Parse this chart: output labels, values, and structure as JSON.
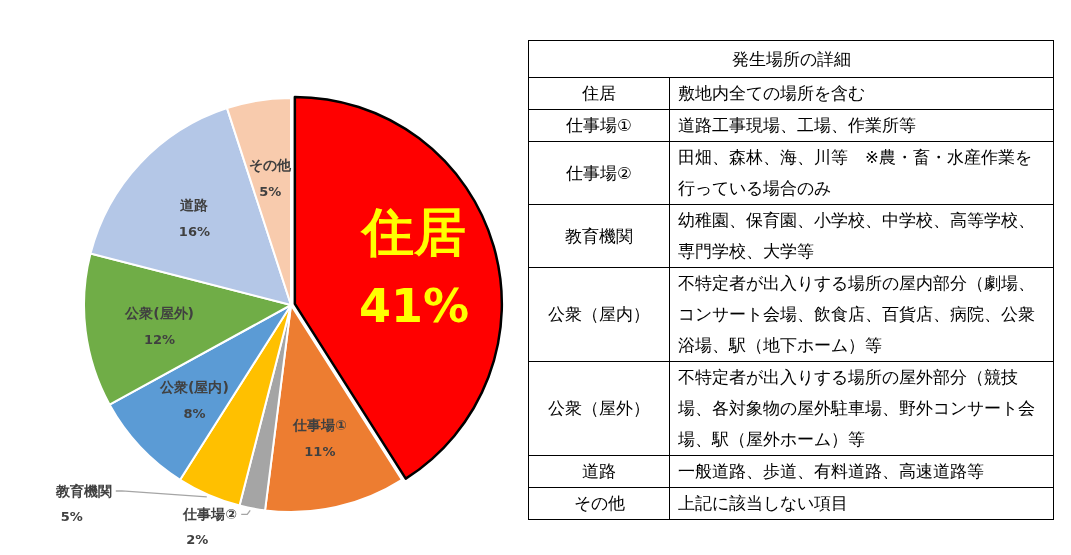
{
  "chart_data": [
    {
      "type": "pie",
      "categories": [
        "住居",
        "仕事場①",
        "仕事場②",
        "教育機関",
        "公衆(屋内)",
        "公衆(屋外)",
        "道路",
        "その他"
      ],
      "values": [
        41,
        11,
        2,
        5,
        8,
        12,
        16,
        5
      ],
      "value_labels": [
        "41%",
        "11%",
        "2%",
        "5%",
        "8%",
        "12%",
        "16%",
        "5%"
      ],
      "colors": [
        "#ff0000",
        "#ed7d31",
        "#a5a5a5",
        "#ffc000",
        "#5b9bd5",
        "#70ad47",
        "#b4c7e7",
        "#f8cbad"
      ]
    },
    {
      "type": "other",
      "title": "発生場所の詳細",
      "categories": [
        "住居",
        "仕事場①",
        "仕事場②",
        "教育機関",
        "公衆（屋内）",
        "公衆（屋外）",
        "道路",
        "その他"
      ],
      "annotations": [
        "敷地内全ての場所を含む",
        "道路工事現場、工場、作業所等",
        "田畑、森林、海、川等　※農・畜・水産作業を行っている場合のみ",
        "幼稚園、保育園、小学校、中学校、高等学校、専門学校、大学等",
        "不特定者が出入りする場所の屋内部分（劇場、コンサート会場、飲食店、百貨店、病院、公衆浴場、駅（地下ホーム）等",
        "不特定者が出入りする場所の屋外部分（競技場、各対象物の屋外駐車場、野外コンサート会場、駅（屋外ホーム）等",
        "一般道路、歩道、有料道路、高速道路等",
        "上記に該当しない項目"
      ]
    }
  ]
}
